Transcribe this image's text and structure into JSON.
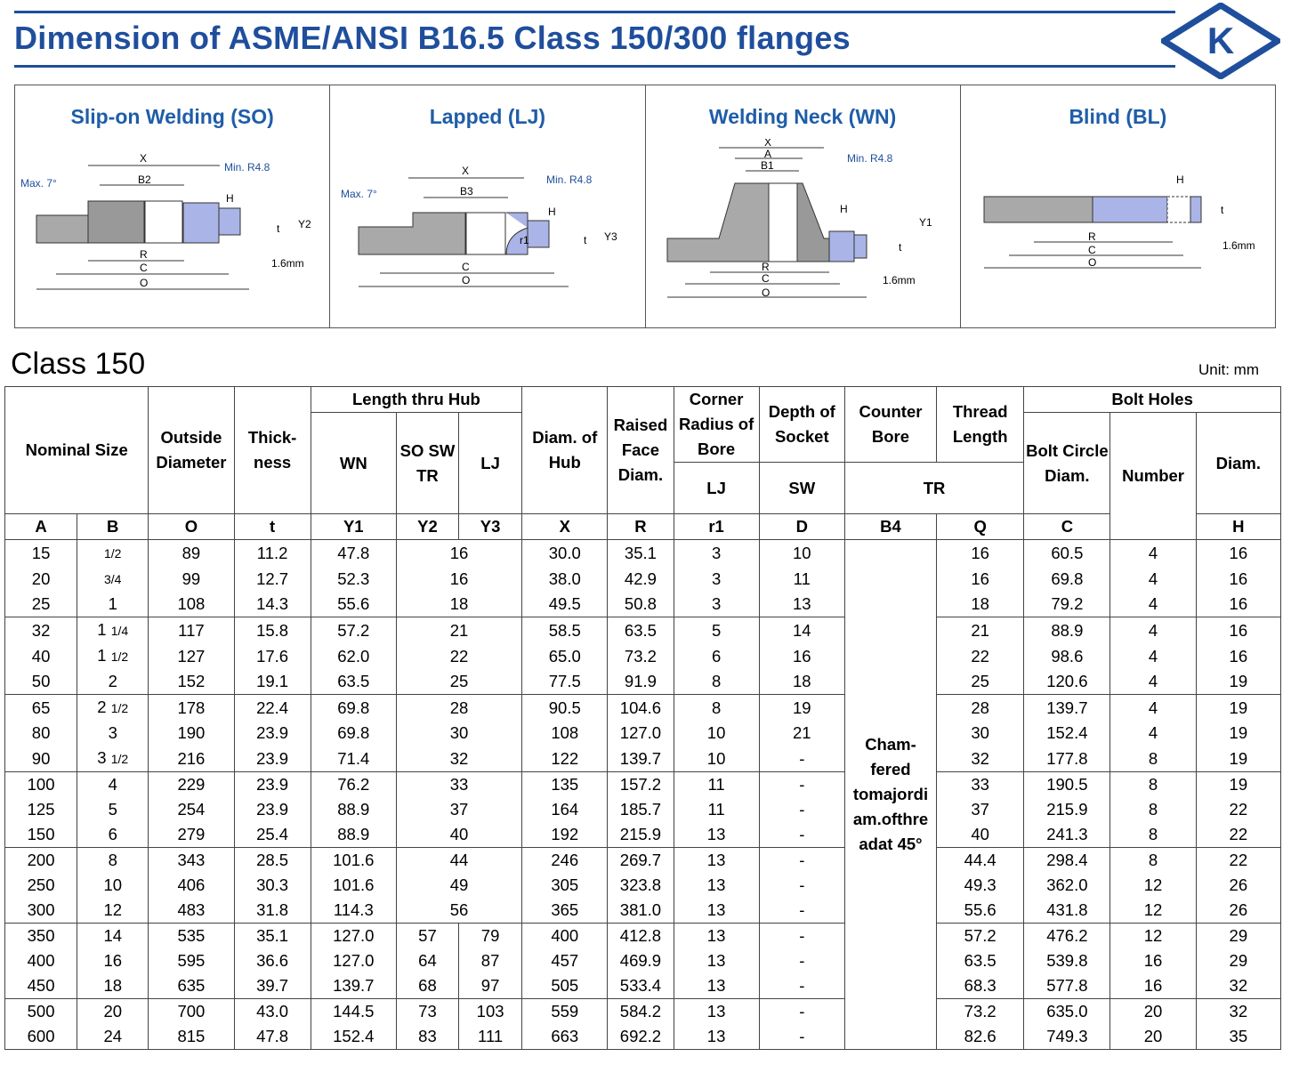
{
  "header": {
    "title": "Dimension of ASME/ANSI B16.5 Class 150/300 flanges",
    "logo_letter": "K"
  },
  "diagrams": [
    {
      "title": "Slip-on Welding (SO)",
      "labels": [
        "X",
        "B2",
        "Max. 7°",
        "Min. R4.8",
        "H",
        "t",
        "Y2",
        "R",
        "C",
        "O",
        "1.6mm"
      ]
    },
    {
      "title": "Lapped (LJ)",
      "labels": [
        "X",
        "B3",
        "Max. 7°",
        "Min. R4.8",
        "H",
        "r1",
        "t",
        "Y3",
        "C",
        "O"
      ]
    },
    {
      "title": "Welding Neck (WN)",
      "labels": [
        "X",
        "A",
        "B1",
        "Min. R4.8",
        "H",
        "t",
        "Y1",
        "R",
        "C",
        "O",
        "1.6mm"
      ]
    },
    {
      "title": "Blind (BL)",
      "labels": [
        "H",
        "t",
        "R",
        "C",
        "O",
        "1.6mm"
      ]
    }
  ],
  "section": {
    "title": "Class 150",
    "unit": "Unit: mm"
  },
  "table": {
    "header": {
      "nominal_size": "Nominal Size",
      "outside_diameter": "Outside Diameter",
      "thickness": "Thick- ness",
      "length_thru_hub": "Length thru Hub",
      "wn": "WN",
      "so_sw_tr": "SO SW TR",
      "lj": "LJ",
      "diam_of_hub": "Diam. of Hub",
      "raised_face": "Raised Face Diam.",
      "corner_radius": "Corner Radius of Bore",
      "corner_lj": "LJ",
      "depth_of_socket": "Depth of Socket",
      "depth_sw": "SW",
      "counter_bore": "Counter Bore",
      "thread_length": "Thread Length",
      "tr": "TR",
      "bolt_holes": "Bolt Holes",
      "bolt_circle": "Bolt Circle Diam.",
      "number": "Number",
      "bolt_diam": "Diam."
    },
    "symbols": [
      "A",
      "B",
      "O",
      "t",
      "Y1",
      "Y2",
      "Y3",
      "X",
      "R",
      "r1",
      "D",
      "B4",
      "Q",
      "C",
      "H"
    ],
    "counter_bore_note": "Cham- fered tomajordi am.ofthre adat 45°",
    "groups": [
      [
        {
          "A": "15",
          "B": "1/2",
          "O": "89",
          "t": "11.2",
          "Y1": "47.8",
          "Y2Y3": "16",
          "X": "30.0",
          "R": "35.1",
          "r1": "3",
          "D": "10",
          "Q": "16",
          "C": "60.5",
          "N": "4",
          "H": "16"
        },
        {
          "A": "20",
          "B": "3/4",
          "O": "99",
          "t": "12.7",
          "Y1": "52.3",
          "Y2Y3": "16",
          "X": "38.0",
          "R": "42.9",
          "r1": "3",
          "D": "11",
          "Q": "16",
          "C": "69.8",
          "N": "4",
          "H": "16"
        },
        {
          "A": "25",
          "B": "1",
          "O": "108",
          "t": "14.3",
          "Y1": "55.6",
          "Y2Y3": "18",
          "X": "49.5",
          "R": "50.8",
          "r1": "3",
          "D": "13",
          "Q": "18",
          "C": "79.2",
          "N": "4",
          "H": "16"
        }
      ],
      [
        {
          "A": "32",
          "B": "1 1/4",
          "O": "117",
          "t": "15.8",
          "Y1": "57.2",
          "Y2Y3": "21",
          "X": "58.5",
          "R": "63.5",
          "r1": "5",
          "D": "14",
          "Q": "21",
          "C": "88.9",
          "N": "4",
          "H": "16"
        },
        {
          "A": "40",
          "B": "1 1/2",
          "O": "127",
          "t": "17.6",
          "Y1": "62.0",
          "Y2Y3": "22",
          "X": "65.0",
          "R": "73.2",
          "r1": "6",
          "D": "16",
          "Q": "22",
          "C": "98.6",
          "N": "4",
          "H": "16"
        },
        {
          "A": "50",
          "B": "2",
          "O": "152",
          "t": "19.1",
          "Y1": "63.5",
          "Y2Y3": "25",
          "X": "77.5",
          "R": "91.9",
          "r1": "8",
          "D": "18",
          "Q": "25",
          "C": "120.6",
          "N": "4",
          "H": "19"
        }
      ],
      [
        {
          "A": "65",
          "B": "2 1/2",
          "O": "178",
          "t": "22.4",
          "Y1": "69.8",
          "Y2Y3": "28",
          "X": "90.5",
          "R": "104.6",
          "r1": "8",
          "D": "19",
          "Q": "28",
          "C": "139.7",
          "N": "4",
          "H": "19"
        },
        {
          "A": "80",
          "B": "3",
          "O": "190",
          "t": "23.9",
          "Y1": "69.8",
          "Y2Y3": "30",
          "X": "108",
          "R": "127.0",
          "r1": "10",
          "D": "21",
          "Q": "30",
          "C": "152.4",
          "N": "4",
          "H": "19"
        },
        {
          "A": "90",
          "B": "3 1/2",
          "O": "216",
          "t": "23.9",
          "Y1": "71.4",
          "Y2Y3": "32",
          "X": "122",
          "R": "139.7",
          "r1": "10",
          "D": "-",
          "Q": "32",
          "C": "177.8",
          "N": "8",
          "H": "19"
        }
      ],
      [
        {
          "A": "100",
          "B": "4",
          "O": "229",
          "t": "23.9",
          "Y1": "76.2",
          "Y2Y3": "33",
          "X": "135",
          "R": "157.2",
          "r1": "11",
          "D": "-",
          "Q": "33",
          "C": "190.5",
          "N": "8",
          "H": "19"
        },
        {
          "A": "125",
          "B": "5",
          "O": "254",
          "t": "23.9",
          "Y1": "88.9",
          "Y2Y3": "37",
          "X": "164",
          "R": "185.7",
          "r1": "11",
          "D": "-",
          "Q": "37",
          "C": "215.9",
          "N": "8",
          "H": "22"
        },
        {
          "A": "150",
          "B": "6",
          "O": "279",
          "t": "25.4",
          "Y1": "88.9",
          "Y2Y3": "40",
          "X": "192",
          "R": "215.9",
          "r1": "13",
          "D": "-",
          "Q": "40",
          "C": "241.3",
          "N": "8",
          "H": "22"
        }
      ],
      [
        {
          "A": "200",
          "B": "8",
          "O": "343",
          "t": "28.5",
          "Y1": "101.6",
          "Y2Y3": "44",
          "X": "246",
          "R": "269.7",
          "r1": "13",
          "D": "-",
          "Q": "44.4",
          "C": "298.4",
          "N": "8",
          "H": "22"
        },
        {
          "A": "250",
          "B": "10",
          "O": "406",
          "t": "30.3",
          "Y1": "101.6",
          "Y2Y3": "49",
          "X": "305",
          "R": "323.8",
          "r1": "13",
          "D": "-",
          "Q": "49.3",
          "C": "362.0",
          "N": "12",
          "H": "26"
        },
        {
          "A": "300",
          "B": "12",
          "O": "483",
          "t": "31.8",
          "Y1": "114.3",
          "Y2Y3": "56",
          "X": "365",
          "R": "381.0",
          "r1": "13",
          "D": "-",
          "Q": "55.6",
          "C": "431.8",
          "N": "12",
          "H": "26"
        }
      ],
      [
        {
          "A": "350",
          "B": "14",
          "O": "535",
          "t": "35.1",
          "Y1": "127.0",
          "Y2": "57",
          "Y3": "79",
          "X": "400",
          "R": "412.8",
          "r1": "13",
          "D": "-",
          "Q": "57.2",
          "C": "476.2",
          "N": "12",
          "H": "29"
        },
        {
          "A": "400",
          "B": "16",
          "O": "595",
          "t": "36.6",
          "Y1": "127.0",
          "Y2": "64",
          "Y3": "87",
          "X": "457",
          "R": "469.9",
          "r1": "13",
          "D": "-",
          "Q": "63.5",
          "C": "539.8",
          "N": "16",
          "H": "29"
        },
        {
          "A": "450",
          "B": "18",
          "O": "635",
          "t": "39.7",
          "Y1": "139.7",
          "Y2": "68",
          "Y3": "97",
          "X": "505",
          "R": "533.4",
          "r1": "13",
          "D": "-",
          "Q": "68.3",
          "C": "577.8",
          "N": "16",
          "H": "32"
        }
      ],
      [
        {
          "A": "500",
          "B": "20",
          "O": "700",
          "t": "43.0",
          "Y1": "144.5",
          "Y2": "73",
          "Y3": "103",
          "X": "559",
          "R": "584.2",
          "r1": "13",
          "D": "-",
          "Q": "73.2",
          "C": "635.0",
          "N": "20",
          "H": "32"
        },
        {
          "A": "600",
          "B": "24",
          "O": "815",
          "t": "47.8",
          "Y1": "152.4",
          "Y2": "83",
          "Y3": "111",
          "X": "663",
          "R": "692.2",
          "r1": "13",
          "D": "-",
          "Q": "82.6",
          "C": "749.3",
          "N": "20",
          "H": "35"
        }
      ]
    ]
  },
  "colors": {
    "title_blue": "#1f4e9c",
    "panel_title_blue": "#1f5da8",
    "flange_gray": "#a9a9a9",
    "bore_blue": "#aab4e6"
  }
}
